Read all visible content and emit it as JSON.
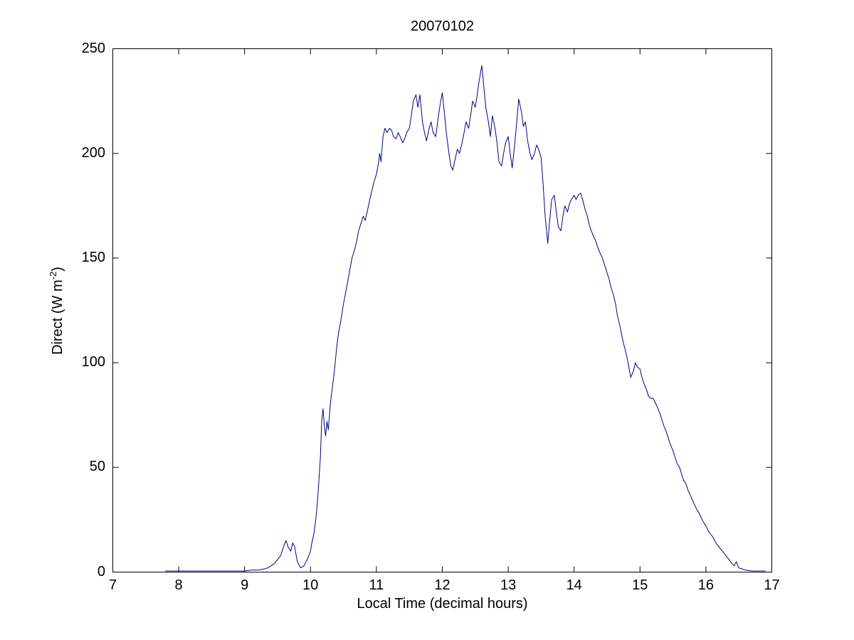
{
  "chart_data": {
    "type": "line",
    "title": "20070102",
    "xlabel": "Local Time (decimal hours)",
    "ylabel_parts": {
      "pre": "Direct (W m",
      "sup": "-2",
      "post": ")"
    },
    "xlim": [
      7,
      17
    ],
    "ylim": [
      0,
      250
    ],
    "xticks": [
      7,
      8,
      9,
      10,
      11,
      12,
      13,
      14,
      15,
      16,
      17
    ],
    "yticks": [
      0,
      50,
      100,
      150,
      200,
      250
    ],
    "grid": false,
    "legend": "none",
    "line_color": "#00008B",
    "points": [
      [
        7.8,
        0.5
      ],
      [
        7.9,
        0.5
      ],
      [
        8.0,
        0.5
      ],
      [
        8.1,
        0.5
      ],
      [
        8.2,
        0.5
      ],
      [
        8.3,
        0.5
      ],
      [
        8.4,
        0.5
      ],
      [
        8.5,
        0.5
      ],
      [
        8.6,
        0.5
      ],
      [
        8.7,
        0.5
      ],
      [
        8.8,
        0.5
      ],
      [
        8.9,
        0.5
      ],
      [
        9.0,
        0.5
      ],
      [
        9.1,
        1
      ],
      [
        9.2,
        1
      ],
      [
        9.3,
        1.5
      ],
      [
        9.35,
        2
      ],
      [
        9.4,
        3
      ],
      [
        9.45,
        4
      ],
      [
        9.5,
        6
      ],
      [
        9.55,
        8
      ],
      [
        9.6,
        13
      ],
      [
        9.63,
        15
      ],
      [
        9.66,
        12
      ],
      [
        9.7,
        10
      ],
      [
        9.73,
        14
      ],
      [
        9.76,
        12
      ],
      [
        9.8,
        5
      ],
      [
        9.85,
        2
      ],
      [
        9.9,
        3
      ],
      [
        9.95,
        6
      ],
      [
        10.0,
        10
      ],
      [
        10.02,
        14
      ],
      [
        10.05,
        18
      ],
      [
        10.08,
        25
      ],
      [
        10.1,
        32
      ],
      [
        10.12,
        40
      ],
      [
        10.15,
        55
      ],
      [
        10.17,
        72
      ],
      [
        10.19,
        78
      ],
      [
        10.21,
        70
      ],
      [
        10.23,
        65
      ],
      [
        10.25,
        72
      ],
      [
        10.27,
        68
      ],
      [
        10.3,
        80
      ],
      [
        10.33,
        88
      ],
      [
        10.36,
        95
      ],
      [
        10.4,
        108
      ],
      [
        10.43,
        115
      ],
      [
        10.46,
        120
      ],
      [
        10.5,
        128
      ],
      [
        10.53,
        133
      ],
      [
        10.56,
        138
      ],
      [
        10.6,
        145
      ],
      [
        10.63,
        150
      ],
      [
        10.66,
        153
      ],
      [
        10.7,
        158
      ],
      [
        10.73,
        163
      ],
      [
        10.76,
        166
      ],
      [
        10.8,
        170
      ],
      [
        10.83,
        168
      ],
      [
        10.86,
        172
      ],
      [
        10.9,
        178
      ],
      [
        10.93,
        182
      ],
      [
        10.96,
        186
      ],
      [
        11.0,
        190
      ],
      [
        11.03,
        195
      ],
      [
        11.05,
        200
      ],
      [
        11.07,
        196
      ],
      [
        11.1,
        208
      ],
      [
        11.13,
        212
      ],
      [
        11.16,
        210
      ],
      [
        11.2,
        212
      ],
      [
        11.23,
        211
      ],
      [
        11.26,
        208
      ],
      [
        11.3,
        207
      ],
      [
        11.33,
        210
      ],
      [
        11.36,
        208
      ],
      [
        11.4,
        205
      ],
      [
        11.43,
        207
      ],
      [
        11.46,
        210
      ],
      [
        11.5,
        212
      ],
      [
        11.53,
        218
      ],
      [
        11.56,
        225
      ],
      [
        11.6,
        228
      ],
      [
        11.63,
        222
      ],
      [
        11.66,
        228
      ],
      [
        11.7,
        215
      ],
      [
        11.73,
        210
      ],
      [
        11.76,
        206
      ],
      [
        11.8,
        212
      ],
      [
        11.83,
        215
      ],
      [
        11.86,
        210
      ],
      [
        11.9,
        208
      ],
      [
        11.93,
        215
      ],
      [
        11.96,
        222
      ],
      [
        12.0,
        229
      ],
      [
        12.03,
        220
      ],
      [
        12.06,
        210
      ],
      [
        12.1,
        200
      ],
      [
        12.13,
        194
      ],
      [
        12.16,
        192
      ],
      [
        12.2,
        198
      ],
      [
        12.23,
        202
      ],
      [
        12.26,
        200
      ],
      [
        12.3,
        205
      ],
      [
        12.33,
        210
      ],
      [
        12.36,
        215
      ],
      [
        12.4,
        212
      ],
      [
        12.43,
        218
      ],
      [
        12.46,
        225
      ],
      [
        12.5,
        222
      ],
      [
        12.53,
        228
      ],
      [
        12.56,
        235
      ],
      [
        12.6,
        242
      ],
      [
        12.63,
        232
      ],
      [
        12.66,
        222
      ],
      [
        12.7,
        215
      ],
      [
        12.73,
        208
      ],
      [
        12.76,
        218
      ],
      [
        12.8,
        212
      ],
      [
        12.83,
        205
      ],
      [
        12.86,
        196
      ],
      [
        12.9,
        194
      ],
      [
        12.93,
        200
      ],
      [
        12.96,
        205
      ],
      [
        13.0,
        208
      ],
      [
        13.03,
        200
      ],
      [
        13.06,
        193
      ],
      [
        13.1,
        205
      ],
      [
        13.13,
        215
      ],
      [
        13.16,
        226
      ],
      [
        13.2,
        220
      ],
      [
        13.23,
        213
      ],
      [
        13.26,
        215
      ],
      [
        13.3,
        205
      ],
      [
        13.33,
        200
      ],
      [
        13.36,
        197
      ],
      [
        13.4,
        200
      ],
      [
        13.43,
        204
      ],
      [
        13.46,
        202
      ],
      [
        13.5,
        198
      ],
      [
        13.53,
        185
      ],
      [
        13.56,
        170
      ],
      [
        13.6,
        157
      ],
      [
        13.63,
        168
      ],
      [
        13.66,
        178
      ],
      [
        13.7,
        180
      ],
      [
        13.73,
        172
      ],
      [
        13.76,
        165
      ],
      [
        13.8,
        163
      ],
      [
        13.83,
        170
      ],
      [
        13.86,
        175
      ],
      [
        13.9,
        172
      ],
      [
        13.93,
        176
      ],
      [
        13.96,
        178
      ],
      [
        14.0,
        180
      ],
      [
        14.03,
        178
      ],
      [
        14.06,
        180
      ],
      [
        14.1,
        181
      ],
      [
        14.13,
        178
      ],
      [
        14.16,
        174
      ],
      [
        14.2,
        170
      ],
      [
        14.23,
        166
      ],
      [
        14.26,
        163
      ],
      [
        14.3,
        160
      ],
      [
        14.33,
        158
      ],
      [
        14.36,
        155
      ],
      [
        14.4,
        152
      ],
      [
        14.43,
        150
      ],
      [
        14.46,
        147
      ],
      [
        14.5,
        143
      ],
      [
        14.53,
        140
      ],
      [
        14.56,
        136
      ],
      [
        14.6,
        132
      ],
      [
        14.63,
        128
      ],
      [
        14.66,
        122
      ],
      [
        14.7,
        117
      ],
      [
        14.73,
        112
      ],
      [
        14.76,
        108
      ],
      [
        14.8,
        103
      ],
      [
        14.83,
        98
      ],
      [
        14.86,
        93
      ],
      [
        14.9,
        96
      ],
      [
        14.93,
        100
      ],
      [
        14.96,
        98
      ],
      [
        15.0,
        97
      ],
      [
        15.03,
        93
      ],
      [
        15.06,
        90
      ],
      [
        15.1,
        87
      ],
      [
        15.13,
        84
      ],
      [
        15.16,
        83
      ],
      [
        15.2,
        83
      ],
      [
        15.23,
        81
      ],
      [
        15.26,
        79
      ],
      [
        15.3,
        76
      ],
      [
        15.33,
        73
      ],
      [
        15.36,
        70
      ],
      [
        15.4,
        67
      ],
      [
        15.43,
        64
      ],
      [
        15.46,
        61
      ],
      [
        15.5,
        58
      ],
      [
        15.53,
        55
      ],
      [
        15.56,
        52
      ],
      [
        15.6,
        50
      ],
      [
        15.63,
        47
      ],
      [
        15.66,
        44
      ],
      [
        15.7,
        42
      ],
      [
        15.73,
        39
      ],
      [
        15.76,
        37
      ],
      [
        15.8,
        34
      ],
      [
        15.83,
        32
      ],
      [
        15.86,
        30
      ],
      [
        15.9,
        28
      ],
      [
        15.93,
        26
      ],
      [
        15.96,
        24
      ],
      [
        16.0,
        22
      ],
      [
        16.05,
        19
      ],
      [
        16.1,
        17
      ],
      [
        16.15,
        14
      ],
      [
        16.2,
        12
      ],
      [
        16.25,
        10
      ],
      [
        16.3,
        8
      ],
      [
        16.35,
        6
      ],
      [
        16.4,
        4
      ],
      [
        16.43,
        3
      ],
      [
        16.46,
        5
      ],
      [
        16.5,
        2
      ],
      [
        16.55,
        1.5
      ],
      [
        16.6,
        1
      ],
      [
        16.7,
        0.5
      ],
      [
        16.8,
        0.5
      ],
      [
        16.9,
        0.5
      ]
    ]
  }
}
